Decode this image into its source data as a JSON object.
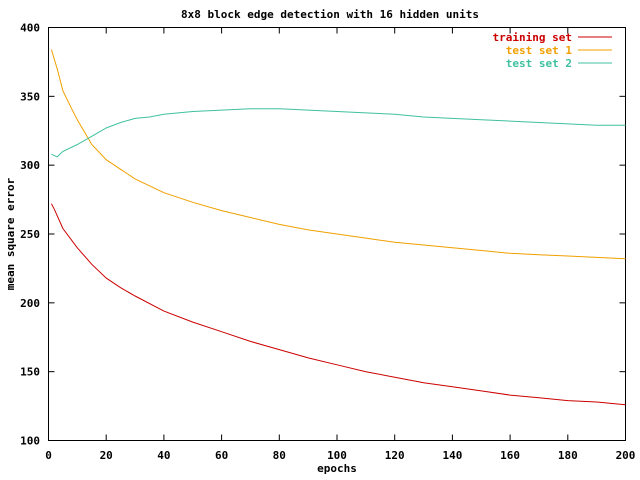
{
  "chart_data": {
    "type": "line",
    "title": "8x8 block edge detection with 16 hidden units",
    "xlabel": "epochs",
    "ylabel": "mean square error",
    "xlim": [
      0,
      200
    ],
    "ylim": [
      100,
      400
    ],
    "xticks": [
      0,
      20,
      40,
      60,
      80,
      100,
      120,
      140,
      160,
      180,
      200
    ],
    "yticks": [
      100,
      150,
      200,
      250,
      300,
      350,
      400
    ],
    "grid": false,
    "legend_position": "top-right",
    "series": [
      {
        "name": "training set",
        "color": "#cc0000",
        "x": [
          1,
          2,
          5,
          10,
          15,
          20,
          25,
          30,
          40,
          50,
          60,
          70,
          80,
          90,
          100,
          110,
          120,
          130,
          140,
          150,
          160,
          170,
          180,
          190,
          200
        ],
        "y": [
          272,
          268,
          254,
          240,
          228,
          218,
          211,
          205,
          194,
          186,
          179,
          172,
          166,
          160,
          155,
          150,
          146,
          142,
          139,
          136,
          133,
          131,
          129,
          128,
          126
        ]
      },
      {
        "name": "test set 1",
        "color": "#f0a000",
        "x": [
          1,
          3,
          5,
          8,
          10,
          15,
          20,
          25,
          30,
          40,
          50,
          60,
          70,
          80,
          90,
          100,
          110,
          120,
          130,
          140,
          150,
          160,
          170,
          180,
          190,
          200
        ],
        "y": [
          384,
          370,
          354,
          341,
          333,
          315,
          304,
          297,
          290,
          280,
          273,
          267,
          262,
          257,
          253,
          250,
          247,
          244,
          242,
          240,
          238,
          236,
          235,
          234,
          233,
          232
        ]
      },
      {
        "name": "test set 2",
        "color": "#40c0a0",
        "x": [
          1,
          3,
          5,
          10,
          15,
          20,
          25,
          30,
          35,
          40,
          50,
          60,
          70,
          80,
          90,
          100,
          110,
          120,
          130,
          140,
          150,
          160,
          170,
          180,
          190,
          200
        ],
        "y": [
          308,
          306,
          310,
          315,
          321,
          327,
          331,
          334,
          335,
          337,
          339,
          340,
          341,
          341,
          340,
          339,
          338,
          337,
          335,
          334,
          333,
          332,
          331,
          330,
          329,
          329
        ]
      }
    ]
  }
}
